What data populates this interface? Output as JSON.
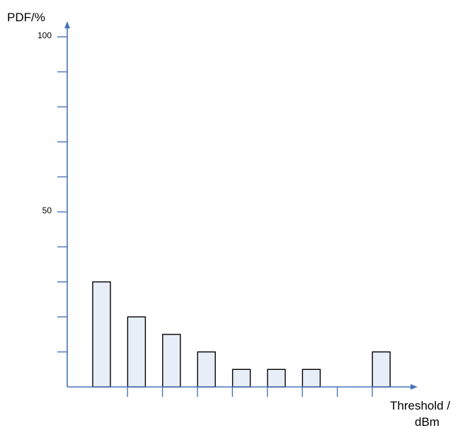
{
  "chart_data": {
    "type": "bar",
    "title": "",
    "ylabel": "PDF/%",
    "xlabel_lines": [
      "Threshold /",
      "dBm"
    ],
    "ylim": [
      0,
      100
    ],
    "y_tick_labels": [
      {
        "value": 50,
        "label": "50"
      },
      {
        "value": 100,
        "label": "100"
      }
    ],
    "y_minor_ticks": [
      10,
      20,
      30,
      40,
      50,
      60,
      70,
      80,
      90,
      100
    ],
    "x_slots": 9,
    "values": [
      30,
      20,
      15,
      10,
      5,
      5,
      5,
      null,
      10
    ],
    "grid": false,
    "legend": "none",
    "colors": {
      "axis": "#4a73b8",
      "bar_fill": "#e8eef8",
      "bar_stroke": "#000000"
    }
  }
}
